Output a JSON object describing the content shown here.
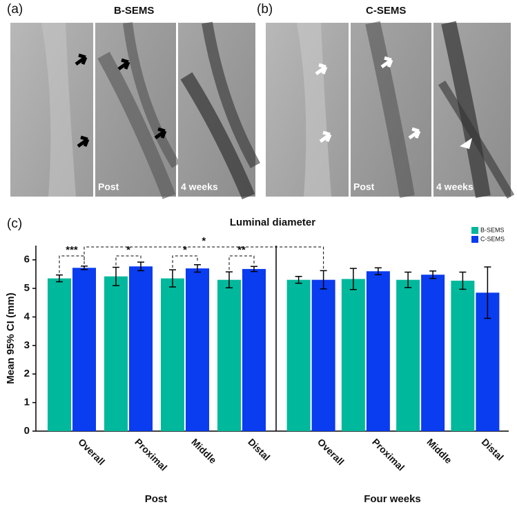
{
  "figure": {
    "panels": [
      {
        "label": "(a)",
        "title": "B-SEMS",
        "captions": [
          "Post",
          "4 weeks"
        ]
      },
      {
        "label": "(b)",
        "title": "C-SEMS",
        "captions": [
          "Post",
          "4 weeks"
        ]
      }
    ],
    "chart_label": "(c)"
  },
  "chart_data": [
    {
      "type": "bar",
      "title": "Luminal diameter",
      "ylabel": "Mean 95% CI (mm)",
      "xlabel": "Post",
      "categories": [
        "Overall",
        "Proximal",
        "Middle",
        "Distal"
      ],
      "series": [
        {
          "name": "B-SEMS",
          "color": "#00b89c",
          "values": [
            5.35,
            5.42,
            5.35,
            5.3
          ],
          "errors": [
            0.12,
            0.32,
            0.3,
            0.28
          ]
        },
        {
          "name": "C-SEMS",
          "color": "#0a3cf0",
          "values": [
            5.72,
            5.77,
            5.7,
            5.68
          ],
          "errors": [
            0.06,
            0.15,
            0.13,
            0.09
          ]
        }
      ],
      "ylim": [
        0,
        6.5
      ],
      "yticks": [
        0,
        1,
        2,
        3,
        4,
        5,
        6
      ],
      "legend": "upper right",
      "annotations": [
        "***",
        "*",
        "*",
        "**",
        "*"
      ]
    },
    {
      "type": "bar",
      "xlabel": "Four weeks",
      "categories": [
        "Overall",
        "Proximal",
        "Middle",
        "Distal"
      ],
      "series": [
        {
          "color": "#00b89c",
          "values": [
            5.3,
            5.33,
            5.3,
            5.27
          ],
          "errors": [
            0.12,
            0.37,
            0.27,
            0.3
          ]
        },
        {
          "color": "#0a3cf0",
          "values": [
            5.3,
            5.6,
            5.48,
            4.85
          ],
          "errors": [
            0.32,
            0.12,
            0.13,
            0.9
          ]
        }
      ],
      "ylim": [
        0,
        6.5
      ]
    }
  ]
}
